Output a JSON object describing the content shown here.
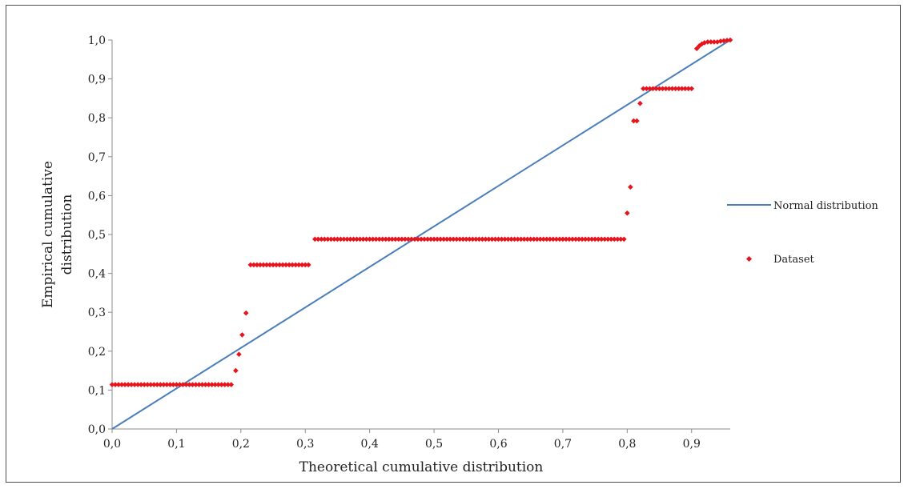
{
  "chart_data": {
    "type": "scatter",
    "xlabel": "Theoretical cumulative distribution",
    "ylabel_lines": [
      "Empirical cumulative",
      "distribution"
    ],
    "xlim": [
      0.0,
      0.96
    ],
    "ylim": [
      0.0,
      1.0
    ],
    "x_ticks": [
      "0,0",
      "0,1",
      "0,2",
      "0,3",
      "0,4",
      "0,5",
      "0,6",
      "0,7",
      "0,8",
      "0,9"
    ],
    "y_ticks": [
      "0,0",
      "0,1",
      "0,2",
      "0,3",
      "0,4",
      "0,5",
      "0,6",
      "0,7",
      "0,8",
      "0,9",
      "1,0"
    ],
    "grid": false,
    "legend_position": "right",
    "series": [
      {
        "name": "Normal distribution",
        "kind": "line",
        "color": "#4a7ebb",
        "points": [
          [
            0.0,
            0.0
          ],
          [
            0.96,
            1.0
          ]
        ]
      },
      {
        "name": "Dataset",
        "kind": "scatter",
        "color": "#e8141b",
        "points": [
          [
            0.0,
            0.114
          ],
          [
            0.005,
            0.114
          ],
          [
            0.01,
            0.114
          ],
          [
            0.015,
            0.114
          ],
          [
            0.02,
            0.114
          ],
          [
            0.025,
            0.114
          ],
          [
            0.03,
            0.114
          ],
          [
            0.035,
            0.114
          ],
          [
            0.04,
            0.114
          ],
          [
            0.045,
            0.114
          ],
          [
            0.05,
            0.114
          ],
          [
            0.055,
            0.114
          ],
          [
            0.06,
            0.114
          ],
          [
            0.065,
            0.114
          ],
          [
            0.07,
            0.114
          ],
          [
            0.075,
            0.114
          ],
          [
            0.08,
            0.114
          ],
          [
            0.085,
            0.114
          ],
          [
            0.09,
            0.114
          ],
          [
            0.095,
            0.114
          ],
          [
            0.1,
            0.114
          ],
          [
            0.105,
            0.114
          ],
          [
            0.11,
            0.114
          ],
          [
            0.115,
            0.114
          ],
          [
            0.12,
            0.114
          ],
          [
            0.125,
            0.114
          ],
          [
            0.13,
            0.114
          ],
          [
            0.135,
            0.114
          ],
          [
            0.14,
            0.114
          ],
          [
            0.145,
            0.114
          ],
          [
            0.15,
            0.114
          ],
          [
            0.155,
            0.114
          ],
          [
            0.16,
            0.114
          ],
          [
            0.165,
            0.114
          ],
          [
            0.17,
            0.114
          ],
          [
            0.175,
            0.114
          ],
          [
            0.18,
            0.114
          ],
          [
            0.185,
            0.114
          ],
          [
            0.192,
            0.15
          ],
          [
            0.197,
            0.192
          ],
          [
            0.202,
            0.242
          ],
          [
            0.208,
            0.298
          ],
          [
            0.215,
            0.422
          ],
          [
            0.22,
            0.422
          ],
          [
            0.225,
            0.422
          ],
          [
            0.23,
            0.422
          ],
          [
            0.235,
            0.422
          ],
          [
            0.24,
            0.422
          ],
          [
            0.245,
            0.422
          ],
          [
            0.25,
            0.422
          ],
          [
            0.255,
            0.422
          ],
          [
            0.26,
            0.422
          ],
          [
            0.265,
            0.422
          ],
          [
            0.27,
            0.422
          ],
          [
            0.275,
            0.422
          ],
          [
            0.28,
            0.422
          ],
          [
            0.285,
            0.422
          ],
          [
            0.29,
            0.422
          ],
          [
            0.295,
            0.422
          ],
          [
            0.3,
            0.422
          ],
          [
            0.305,
            0.422
          ],
          [
            0.315,
            0.488
          ],
          [
            0.32,
            0.488
          ],
          [
            0.325,
            0.488
          ],
          [
            0.33,
            0.488
          ],
          [
            0.335,
            0.488
          ],
          [
            0.34,
            0.488
          ],
          [
            0.345,
            0.488
          ],
          [
            0.35,
            0.488
          ],
          [
            0.355,
            0.488
          ],
          [
            0.36,
            0.488
          ],
          [
            0.365,
            0.488
          ],
          [
            0.37,
            0.488
          ],
          [
            0.375,
            0.488
          ],
          [
            0.38,
            0.488
          ],
          [
            0.385,
            0.488
          ],
          [
            0.39,
            0.488
          ],
          [
            0.395,
            0.488
          ],
          [
            0.4,
            0.488
          ],
          [
            0.405,
            0.488
          ],
          [
            0.41,
            0.488
          ],
          [
            0.415,
            0.488
          ],
          [
            0.42,
            0.488
          ],
          [
            0.425,
            0.488
          ],
          [
            0.43,
            0.488
          ],
          [
            0.435,
            0.488
          ],
          [
            0.44,
            0.488
          ],
          [
            0.445,
            0.488
          ],
          [
            0.45,
            0.488
          ],
          [
            0.455,
            0.488
          ],
          [
            0.46,
            0.488
          ],
          [
            0.465,
            0.488
          ],
          [
            0.47,
            0.488
          ],
          [
            0.475,
            0.488
          ],
          [
            0.48,
            0.488
          ],
          [
            0.485,
            0.488
          ],
          [
            0.49,
            0.488
          ],
          [
            0.495,
            0.488
          ],
          [
            0.5,
            0.488
          ],
          [
            0.505,
            0.488
          ],
          [
            0.51,
            0.488
          ],
          [
            0.515,
            0.488
          ],
          [
            0.52,
            0.488
          ],
          [
            0.525,
            0.488
          ],
          [
            0.53,
            0.488
          ],
          [
            0.535,
            0.488
          ],
          [
            0.54,
            0.488
          ],
          [
            0.545,
            0.488
          ],
          [
            0.55,
            0.488
          ],
          [
            0.555,
            0.488
          ],
          [
            0.56,
            0.488
          ],
          [
            0.565,
            0.488
          ],
          [
            0.57,
            0.488
          ],
          [
            0.575,
            0.488
          ],
          [
            0.58,
            0.488
          ],
          [
            0.585,
            0.488
          ],
          [
            0.59,
            0.488
          ],
          [
            0.595,
            0.488
          ],
          [
            0.6,
            0.488
          ],
          [
            0.605,
            0.488
          ],
          [
            0.61,
            0.488
          ],
          [
            0.615,
            0.488
          ],
          [
            0.62,
            0.488
          ],
          [
            0.625,
            0.488
          ],
          [
            0.63,
            0.488
          ],
          [
            0.635,
            0.488
          ],
          [
            0.64,
            0.488
          ],
          [
            0.645,
            0.488
          ],
          [
            0.65,
            0.488
          ],
          [
            0.655,
            0.488
          ],
          [
            0.66,
            0.488
          ],
          [
            0.665,
            0.488
          ],
          [
            0.67,
            0.488
          ],
          [
            0.675,
            0.488
          ],
          [
            0.68,
            0.488
          ],
          [
            0.685,
            0.488
          ],
          [
            0.69,
            0.488
          ],
          [
            0.695,
            0.488
          ],
          [
            0.7,
            0.488
          ],
          [
            0.705,
            0.488
          ],
          [
            0.71,
            0.488
          ],
          [
            0.715,
            0.488
          ],
          [
            0.72,
            0.488
          ],
          [
            0.725,
            0.488
          ],
          [
            0.73,
            0.488
          ],
          [
            0.735,
            0.488
          ],
          [
            0.74,
            0.488
          ],
          [
            0.745,
            0.488
          ],
          [
            0.75,
            0.488
          ],
          [
            0.755,
            0.488
          ],
          [
            0.76,
            0.488
          ],
          [
            0.765,
            0.488
          ],
          [
            0.77,
            0.488
          ],
          [
            0.775,
            0.488
          ],
          [
            0.78,
            0.488
          ],
          [
            0.785,
            0.488
          ],
          [
            0.79,
            0.488
          ],
          [
            0.795,
            0.488
          ],
          [
            0.8,
            0.555
          ],
          [
            0.805,
            0.622
          ],
          [
            0.81,
            0.792
          ],
          [
            0.815,
            0.792
          ],
          [
            0.82,
            0.837
          ],
          [
            0.825,
            0.875
          ],
          [
            0.83,
            0.875
          ],
          [
            0.835,
            0.875
          ],
          [
            0.84,
            0.875
          ],
          [
            0.845,
            0.875
          ],
          [
            0.85,
            0.875
          ],
          [
            0.855,
            0.875
          ],
          [
            0.86,
            0.875
          ],
          [
            0.865,
            0.875
          ],
          [
            0.87,
            0.875
          ],
          [
            0.875,
            0.875
          ],
          [
            0.88,
            0.875
          ],
          [
            0.885,
            0.875
          ],
          [
            0.89,
            0.875
          ],
          [
            0.895,
            0.875
          ],
          [
            0.9,
            0.875
          ],
          [
            0.908,
            0.978
          ],
          [
            0.912,
            0.985
          ],
          [
            0.916,
            0.99
          ],
          [
            0.92,
            0.993
          ],
          [
            0.925,
            0.995
          ],
          [
            0.93,
            0.995
          ],
          [
            0.935,
            0.995
          ],
          [
            0.94,
            0.995
          ],
          [
            0.945,
            0.997
          ],
          [
            0.95,
            0.998
          ],
          [
            0.955,
            0.999
          ],
          [
            0.96,
            1.0
          ]
        ]
      }
    ]
  }
}
